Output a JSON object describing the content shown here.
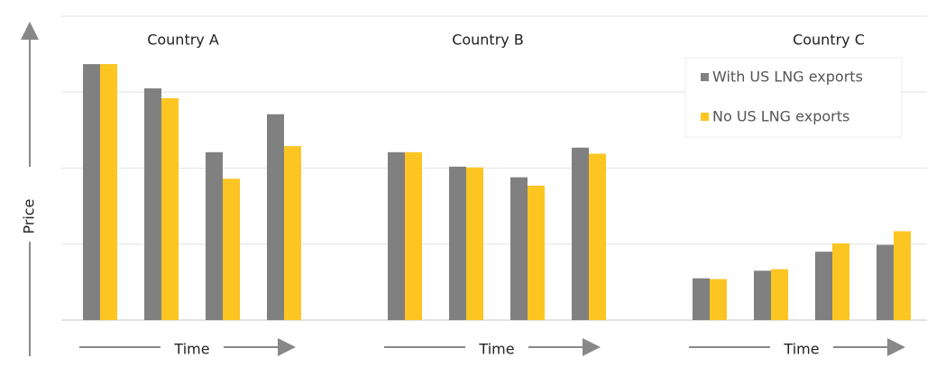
{
  "chart_data": [
    {
      "type": "bar",
      "title": "Country A",
      "x_label": "Time",
      "y_label": "Price",
      "categories": [
        null,
        null,
        null,
        null
      ],
      "ylim": [
        0,
        4
      ],
      "gridlines": [
        0,
        1,
        2,
        3,
        4
      ],
      "series": [
        {
          "name": "With US LNG exports",
          "color": "#808080",
          "values": [
            3.37,
            3.05,
            2.21,
            2.71
          ]
        },
        {
          "name": "No US LNG exports",
          "color": "#fcc521",
          "values": [
            3.37,
            2.92,
            1.86,
            2.29
          ]
        }
      ]
    },
    {
      "type": "bar",
      "title": "Country B",
      "x_label": "Time",
      "categories": [
        null,
        null,
        null,
        null
      ],
      "ylim": [
        0,
        4
      ],
      "gridlines": [
        0,
        1,
        2,
        3,
        4
      ],
      "series": [
        {
          "name": "With US LNG exports",
          "color": "#808080",
          "values": [
            2.21,
            2.02,
            1.88,
            2.27
          ]
        },
        {
          "name": "No US LNG exports",
          "color": "#fcc521",
          "values": [
            2.21,
            2.01,
            1.77,
            2.19
          ]
        }
      ]
    },
    {
      "type": "bar",
      "title": "Country C",
      "x_label": "Time",
      "categories": [
        null,
        null,
        null,
        null
      ],
      "ylim": [
        0,
        4
      ],
      "gridlines": [
        0,
        1,
        2,
        3,
        4
      ],
      "legend": "upper right",
      "series": [
        {
          "name": "With US LNG exports",
          "color": "#808080",
          "values": [
            0.55,
            0.65,
            0.9,
            0.99
          ]
        },
        {
          "name": "No US LNG exports",
          "color": "#fcc521",
          "values": [
            0.54,
            0.67,
            1.01,
            1.17
          ]
        }
      ]
    }
  ]
}
